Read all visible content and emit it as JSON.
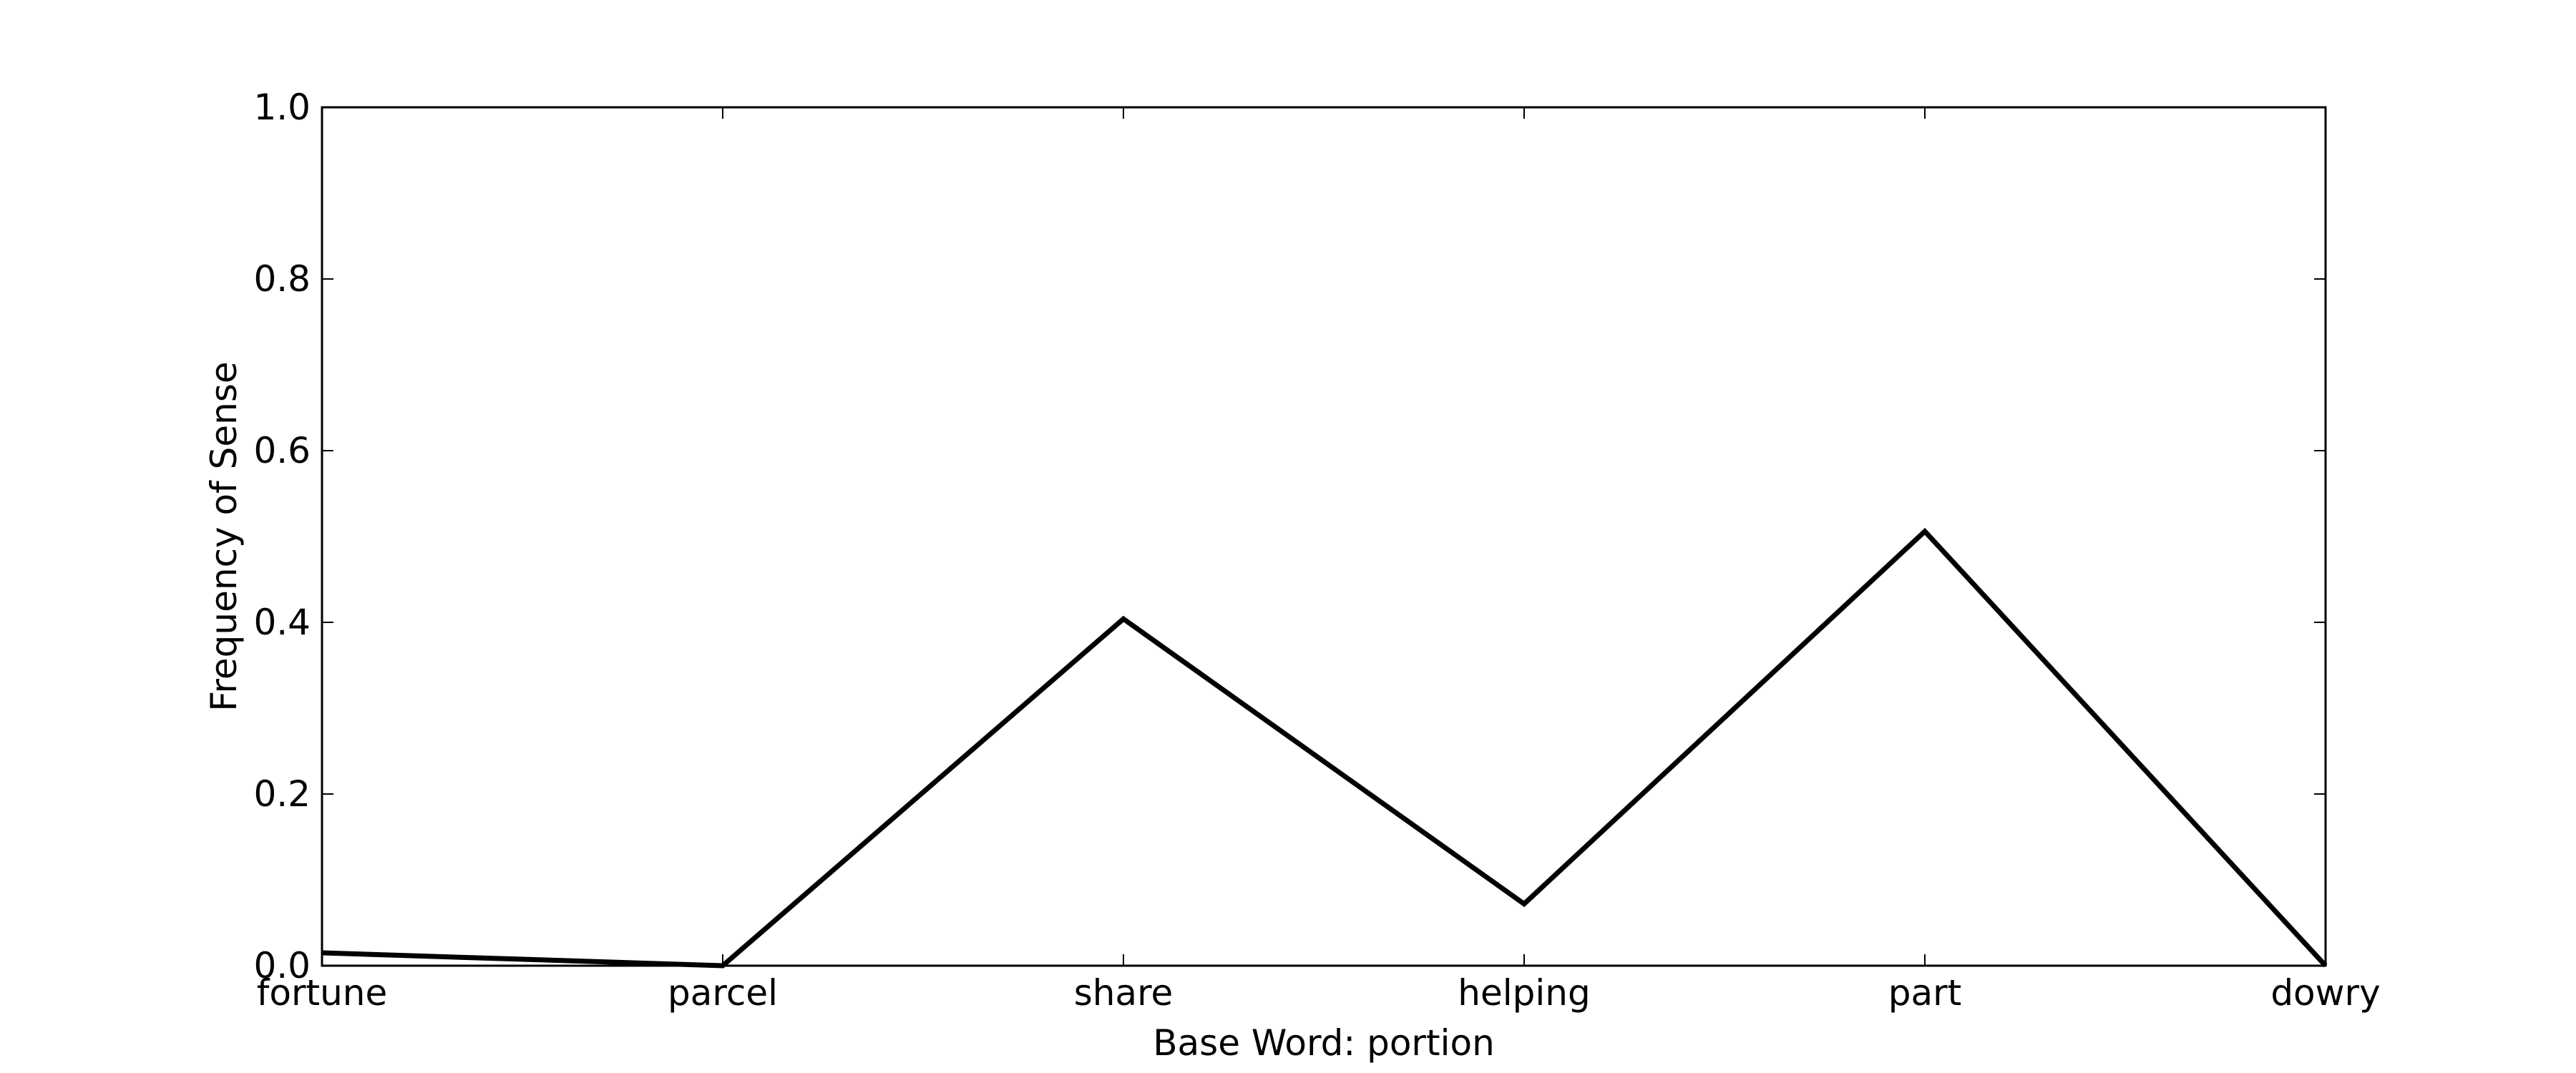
{
  "chart_data": {
    "type": "line",
    "title": "",
    "xlabel": "Base Word: portion",
    "ylabel": "Frequency of Sense",
    "categories": [
      "fortune",
      "parcel",
      "share",
      "helping",
      "part",
      "dowry"
    ],
    "values": [
      0.015,
      0.0,
      0.404,
      0.072,
      0.506,
      0.0
    ],
    "ylim": [
      0,
      1.0
    ],
    "yticks": [
      "0.0",
      "0.2",
      "0.4",
      "0.6",
      "0.8",
      "1.0"
    ],
    "grid": false,
    "legend": "none",
    "line_color": "#000000"
  }
}
